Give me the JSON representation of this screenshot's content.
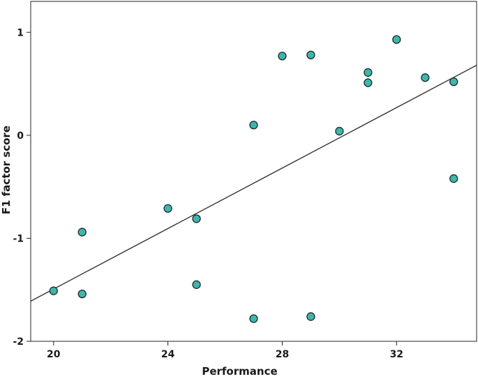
{
  "chart_data": {
    "type": "scatter",
    "title": "",
    "xlabel": "Performance",
    "ylabel": "F1 factor score",
    "xlim": [
      19.2,
      34.8
    ],
    "ylim": [
      -2.0,
      1.3
    ],
    "xticks": [
      20,
      24,
      28,
      32
    ],
    "xtick_labels": [
      "20",
      "24",
      "28",
      "32"
    ],
    "yticks": [
      1,
      0,
      -1,
      -2
    ],
    "ytick_labels": [
      "1",
      "0",
      "-1",
      "-2"
    ],
    "grid": false,
    "legend": "none",
    "marker_fill": "#3fb6ac",
    "marker_edge": "#1f2a2a",
    "line_color": "#333333",
    "points": [
      {
        "x": 20,
        "y": -1.51
      },
      {
        "x": 21,
        "y": -0.94
      },
      {
        "x": 21,
        "y": -1.54
      },
      {
        "x": 24,
        "y": -0.71
      },
      {
        "x": 25,
        "y": -0.81
      },
      {
        "x": 25,
        "y": -1.45
      },
      {
        "x": 27,
        "y": 0.1
      },
      {
        "x": 27,
        "y": -1.78
      },
      {
        "x": 28,
        "y": 0.77
      },
      {
        "x": 29,
        "y": 0.78
      },
      {
        "x": 29,
        "y": -1.76
      },
      {
        "x": 30,
        "y": 0.04
      },
      {
        "x": 31,
        "y": 0.61
      },
      {
        "x": 31,
        "y": 0.51
      },
      {
        "x": 32,
        "y": 0.93
      },
      {
        "x": 33,
        "y": 0.56
      },
      {
        "x": 34,
        "y": 0.52
      },
      {
        "x": 34,
        "y": -0.42
      }
    ],
    "fit_line": {
      "x": [
        19.2,
        34.8
      ],
      "y": [
        -1.61,
        0.68
      ]
    }
  }
}
